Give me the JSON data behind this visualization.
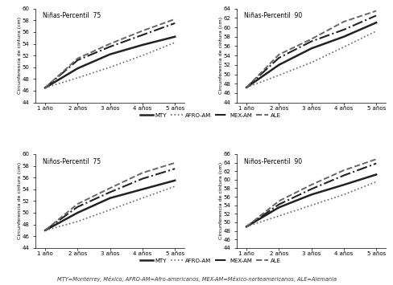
{
  "x": [
    1,
    2,
    3,
    4,
    5
  ],
  "x_labels": [
    "1 año",
    "2 años",
    "3 años",
    "4 años",
    "5 años"
  ],
  "panels": [
    {
      "title": "Niñas-Percentil  75",
      "ylim": [
        44,
        60
      ],
      "yticks": [
        44,
        46,
        48,
        50,
        52,
        54,
        56,
        58,
        60
      ],
      "MTY": [
        46.5,
        49.8,
        52.2,
        53.8,
        55.2
      ],
      "AFRO_AM": [
        46.5,
        48.2,
        50.0,
        52.0,
        54.2
      ],
      "MEX_AM": [
        46.5,
        51.2,
        53.5,
        55.5,
        57.5
      ],
      "ALE": [
        46.5,
        51.5,
        54.0,
        56.2,
        58.2
      ]
    },
    {
      "title": "Niñas-Percentil  90",
      "ylim": [
        44,
        64
      ],
      "yticks": [
        44,
        46,
        48,
        50,
        52,
        54,
        56,
        58,
        60,
        62,
        64
      ],
      "MTY": [
        47.2,
        52.0,
        55.5,
        58.0,
        61.0
      ],
      "AFRO_AM": [
        47.2,
        49.8,
        52.5,
        55.8,
        59.2
      ],
      "MEX_AM": [
        47.2,
        53.5,
        57.0,
        59.5,
        62.5
      ],
      "ALE": [
        47.2,
        54.2,
        57.5,
        61.2,
        63.5
      ]
    },
    {
      "title": "Niños-Percentil  75",
      "ylim": [
        44,
        60
      ],
      "yticks": [
        44,
        46,
        48,
        50,
        52,
        54,
        56,
        58,
        60
      ],
      "MTY": [
        47.0,
        50.0,
        52.5,
        54.0,
        55.5
      ],
      "AFRO_AM": [
        47.0,
        48.5,
        50.5,
        52.5,
        54.5
      ],
      "MEX_AM": [
        47.0,
        51.0,
        53.5,
        55.8,
        57.5
      ],
      "ALE": [
        47.0,
        51.5,
        54.2,
        56.8,
        58.5
      ]
    },
    {
      "title": "Niños-Percentil  90",
      "ylim": [
        44,
        66
      ],
      "yticks": [
        44,
        46,
        48,
        50,
        52,
        54,
        56,
        58,
        60,
        62,
        64,
        66
      ],
      "MTY": [
        49.0,
        53.5,
        56.5,
        58.8,
        61.2
      ],
      "AFRO_AM": [
        49.0,
        51.5,
        54.0,
        56.5,
        59.5
      ],
      "MEX_AM": [
        49.0,
        54.2,
        57.8,
        61.0,
        63.8
      ],
      "ALE": [
        49.0,
        55.0,
        58.8,
        62.2,
        64.8
      ]
    }
  ],
  "legend_labels": [
    "MTY",
    "AFRO-AM",
    "MEX-AM",
    "ALE"
  ],
  "ylabel": "Circunferencia de cintura (cm)",
  "footer": "MTY=Monterrey, México, AFRO-AM=Afro-americanos, MEX-AM=México-norteamericanos, ALE=Alemania",
  "line_styles": {
    "MTY": {
      "color": "#222222",
      "linestyle": "-",
      "linewidth": 1.8
    },
    "AFRO_AM": {
      "color": "#666666",
      "linestyle": ":",
      "linewidth": 1.2
    },
    "MEX_AM": {
      "color": "#222222",
      "linestyle": "-.",
      "linewidth": 1.5
    },
    "ALE": {
      "color": "#666666",
      "linestyle": "--",
      "linewidth": 1.4
    }
  }
}
